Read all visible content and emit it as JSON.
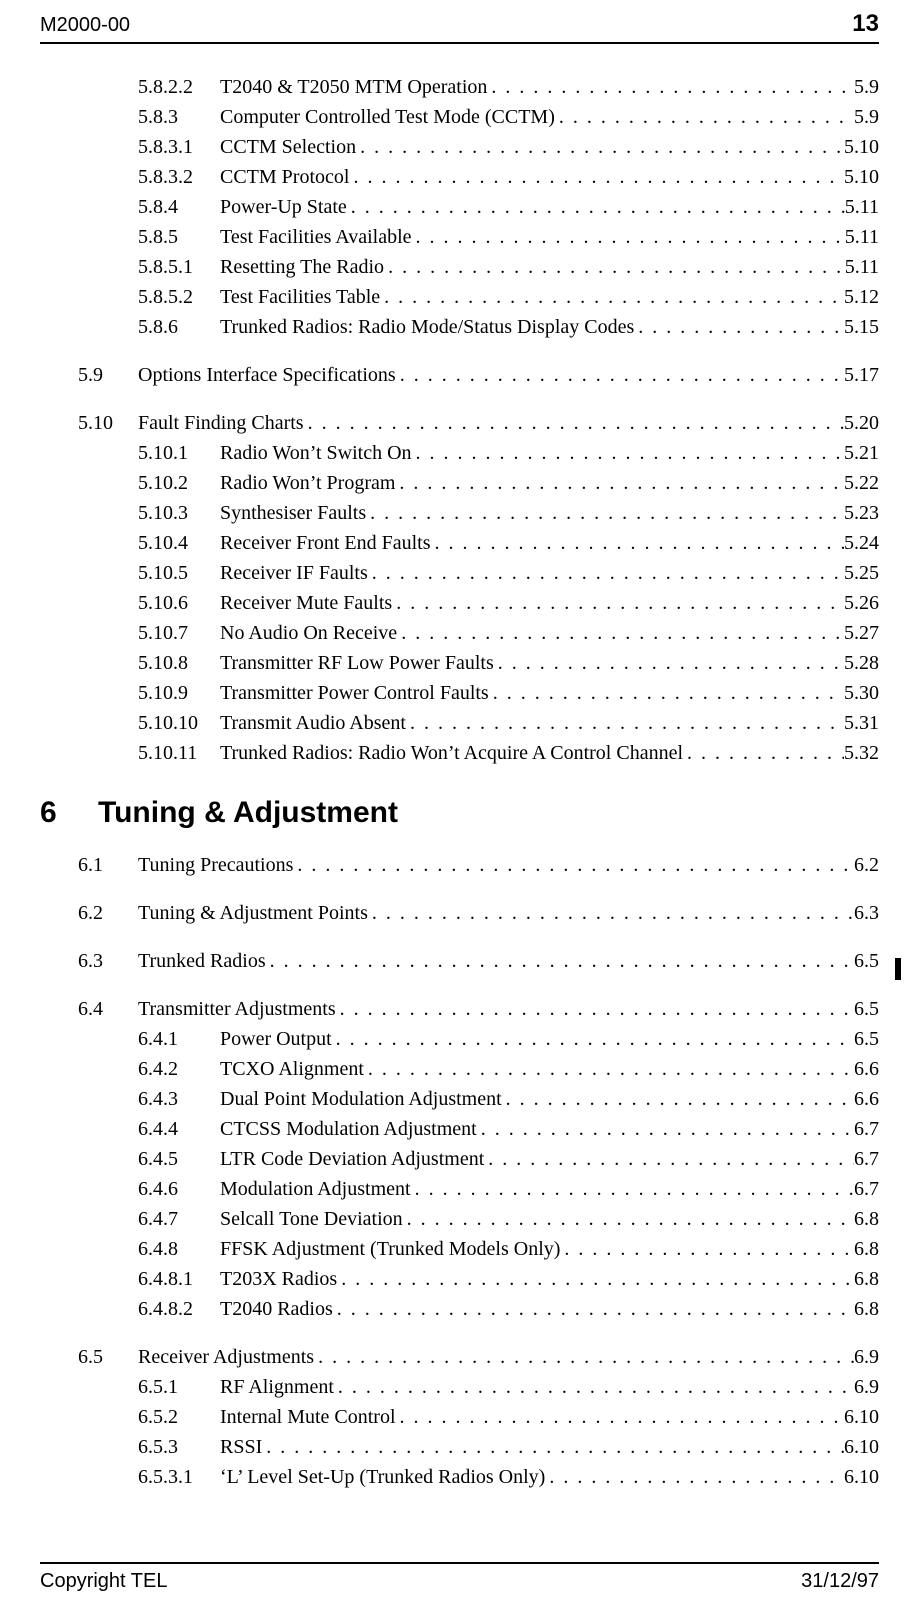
{
  "header": {
    "doc_id": "M2000-00",
    "page_num": "13"
  },
  "footer": {
    "copyright": "Copyright TEL",
    "date": "31/12/97"
  },
  "chapter6": {
    "num": "6",
    "title": "Tuning & Adjustment"
  },
  "toc": [
    {
      "lvl": 3,
      "n": "5.8.2.2",
      "t": "T2040 & T2050 MTM Operation",
      "p": "5.9"
    },
    {
      "lvl": 3,
      "n": "5.8.3",
      "t": "Computer Controlled Test Mode (CCTM)",
      "p": "5.9"
    },
    {
      "lvl": 3,
      "n": "5.8.3.1",
      "t": "CCTM Selection",
      "p": "5.10"
    },
    {
      "lvl": 3,
      "n": "5.8.3.2",
      "t": "CCTM Protocol",
      "p": "5.10"
    },
    {
      "lvl": 3,
      "n": "5.8.4",
      "t": "Power-Up State",
      "p": "5.11"
    },
    {
      "lvl": 3,
      "n": "5.8.5",
      "t": "Test Facilities Available",
      "p": "5.11"
    },
    {
      "lvl": 3,
      "n": "5.8.5.1",
      "t": "Resetting The Radio",
      "p": "5.11"
    },
    {
      "lvl": 3,
      "n": "5.8.5.2",
      "t": "Test Facilities Table",
      "p": "5.12"
    },
    {
      "lvl": 3,
      "n": "5.8.6",
      "t": "Trunked Radios: Radio Mode/Status Display Codes",
      "p": "5.15"
    },
    {
      "spacer": true
    },
    {
      "lvl": 2,
      "n": "5.9",
      "t": "Options Interface Specifications",
      "p": "5.17"
    },
    {
      "spacer": true
    },
    {
      "lvl": 2,
      "n": "5.10",
      "t": "Fault Finding Charts",
      "p": "5.20"
    },
    {
      "lvl": 3,
      "n": "5.10.1",
      "t": "Radio Won’t Switch On",
      "p": "5.21"
    },
    {
      "lvl": 3,
      "n": "5.10.2",
      "t": "Radio Won’t Program",
      "p": "5.22"
    },
    {
      "lvl": 3,
      "n": "5.10.3",
      "t": "Synthesiser Faults",
      "p": "5.23"
    },
    {
      "lvl": 3,
      "n": "5.10.4",
      "t": "Receiver Front End Faults",
      "p": "5.24"
    },
    {
      "lvl": 3,
      "n": "5.10.5",
      "t": "Receiver IF Faults",
      "p": "5.25"
    },
    {
      "lvl": 3,
      "n": "5.10.6",
      "t": "Receiver Mute Faults",
      "p": "5.26"
    },
    {
      "lvl": 3,
      "n": "5.10.7",
      "t": "No Audio On Receive",
      "p": "5.27"
    },
    {
      "lvl": 3,
      "n": "5.10.8",
      "t": "Transmitter RF Low Power Faults",
      "p": "5.28"
    },
    {
      "lvl": 3,
      "n": "5.10.9",
      "t": "Transmitter Power Control Faults",
      "p": "5.30"
    },
    {
      "lvl": 3,
      "n": "5.10.10",
      "t": "Transmit Audio Absent",
      "p": "5.31"
    },
    {
      "lvl": 3,
      "n": "5.10.11",
      "t": "Trunked Radios: Radio Won’t Acquire A Control Channel",
      "p": "5.32"
    },
    {
      "chapter": true
    },
    {
      "lvl": 2,
      "n": "6.1",
      "t": "Tuning Precautions",
      "p": "6.2"
    },
    {
      "spacer": true
    },
    {
      "lvl": 2,
      "n": "6.2",
      "t": "Tuning & Adjustment Points",
      "p": "6.3"
    },
    {
      "spacer": true
    },
    {
      "lvl": 2,
      "n": "6.3",
      "t": "Trunked Radios",
      "p": "6.5"
    },
    {
      "spacer": true
    },
    {
      "lvl": 2,
      "n": "6.4",
      "t": "Transmitter Adjustments",
      "p": "6.5"
    },
    {
      "lvl": 3,
      "n": "6.4.1",
      "t": "Power Output",
      "p": "6.5"
    },
    {
      "lvl": 3,
      "n": "6.4.2",
      "t": "TCXO Alignment",
      "p": "6.6"
    },
    {
      "lvl": 3,
      "n": "6.4.3",
      "t": "Dual Point Modulation Adjustment",
      "p": "6.6"
    },
    {
      "lvl": 3,
      "n": "6.4.4",
      "t": "CTCSS Modulation Adjustment",
      "p": "6.7"
    },
    {
      "lvl": 3,
      "n": "6.4.5",
      "t": "LTR Code Deviation Adjustment",
      "p": "6.7"
    },
    {
      "lvl": 3,
      "n": "6.4.6",
      "t": "Modulation Adjustment",
      "p": "6.7"
    },
    {
      "lvl": 3,
      "n": "6.4.7",
      "t": "Selcall Tone Deviation",
      "p": "6.8"
    },
    {
      "lvl": 3,
      "n": "6.4.8",
      "t": "FFSK Adjustment (Trunked Models Only)",
      "p": "6.8"
    },
    {
      "lvl": 3,
      "n": "6.4.8.1",
      "t": "T203X Radios",
      "p": "6.8"
    },
    {
      "lvl": 3,
      "n": "6.4.8.2",
      "t": "T2040 Radios",
      "p": "6.8"
    },
    {
      "spacer": true
    },
    {
      "lvl": 2,
      "n": "6.5",
      "t": "Receiver Adjustments",
      "p": "6.9"
    },
    {
      "lvl": 3,
      "n": "6.5.1",
      "t": "RF Alignment",
      "p": "6.9"
    },
    {
      "lvl": 3,
      "n": "6.5.2",
      "t": "Internal Mute Control",
      "p": "6.10"
    },
    {
      "lvl": 3,
      "n": "6.5.3",
      "t": "RSSI",
      "p": "6.10"
    },
    {
      "lvl": 3,
      "n": "6.5.3.1",
      "t": "‘L’ Level Set-Up (Trunked Radios Only)",
      "p": "6.10"
    }
  ]
}
